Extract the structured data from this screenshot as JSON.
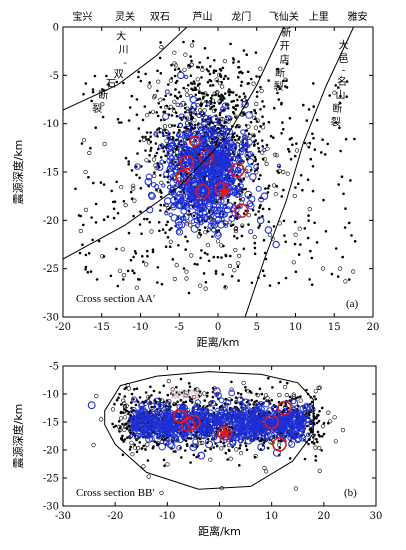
{
  "chart_data": [
    {
      "type": "scatter",
      "panel_label": "(a)",
      "section_label": "Cross section AA′",
      "xlabel": "距离/km",
      "ylabel": "震源深度/km",
      "xlim": [
        -20,
        20
      ],
      "ylim": [
        -30,
        0
      ],
      "xticks": [
        "-20",
        "-15",
        "-10",
        "-5",
        "0",
        "5",
        "10",
        "15",
        "20"
      ],
      "yticks": [
        "0",
        "-5",
        "-10",
        "-15",
        "-20",
        "-25",
        "-30"
      ],
      "top_places": [
        "宝兴",
        "灵关",
        "双石",
        "芦山",
        "龙门",
        "飞仙关",
        "上里",
        "雅安"
      ],
      "fault_labels": [
        {
          "text": [
            "大",
            "川",
            "-",
            "双",
            "石",
            "断",
            "裂"
          ]
        },
        {
          "text": [
            "新",
            "开",
            "店",
            "断",
            "裂"
          ]
        },
        {
          "text": [
            "大",
            "邑",
            "-",
            "名",
            "山",
            "断",
            "裂"
          ]
        }
      ],
      "series": [
        {
          "points": [
            [
              -3.0,
              -11.8
            ],
            [
              -1.5,
              -13.5
            ],
            [
              2.5,
              -14.8
            ],
            [
              -4.5,
              -15.5
            ],
            [
              -4.0,
              -14.0
            ],
            [
              0.5,
              -16.8
            ],
            [
              3.0,
              -19.0
            ],
            [
              -2.0,
              -17.0
            ]
          ]
        },
        {
          "points": [
            [
              -4.8,
              -5.0
            ],
            [
              -3.2,
              -7.5
            ],
            [
              -1.5,
              -9.5
            ],
            [
              0.8,
              -10.5
            ],
            [
              3.5,
              -8.0
            ],
            [
              -6.0,
              -12.0
            ],
            [
              -7.5,
              -14.5
            ],
            [
              -8.5,
              -17.5
            ],
            [
              -5.0,
              -20.5
            ],
            [
              -3.0,
              -19.5
            ],
            [
              4.5,
              -15.5
            ],
            [
              6.0,
              -17.5
            ],
            [
              6.5,
              -21.0
            ],
            [
              7.5,
              -22.5
            ],
            [
              5.5,
              -20.0
            ],
            [
              -9.0,
              -16.0
            ],
            [
              -6.5,
              -18.0
            ],
            [
              2.0,
              -12.5
            ],
            [
              -0.5,
              -20.5
            ],
            [
              1.5,
              -18.5
            ]
          ]
        }
      ]
    },
    {
      "type": "scatter",
      "panel_label": "(b)",
      "section_label": "Cross section BB′",
      "pink_label": "破裂区",
      "xlabel": "距离/km",
      "ylabel": "震源深度/km",
      "xlim": [
        -30,
        30
      ],
      "ylim": [
        -30,
        -5
      ],
      "xticks": [
        "-30",
        "-20",
        "-10",
        "0",
        "10",
        "20",
        "30"
      ],
      "yticks": [
        "-5",
        "-10",
        "-15",
        "-20",
        "-25",
        "-30"
      ],
      "series": [
        {
          "points": [
            [
              -7.5,
              -14.0
            ],
            [
              -6.0,
              -15.5
            ],
            [
              -5.0,
              -15.0
            ],
            [
              1.0,
              -17.0
            ],
            [
              10.0,
              -15.0
            ],
            [
              11.5,
              -19.0
            ],
            [
              12.5,
              -12.5
            ]
          ]
        },
        {
          "points": [
            [
              -24.5,
              -12.0
            ],
            [
              -16.0,
              -15.5
            ],
            [
              -12.0,
              -14.0
            ],
            [
              -10.0,
              -17.0
            ],
            [
              -5.0,
              -19.5
            ],
            [
              -2.0,
              -19.0
            ],
            [
              4.5,
              -16.5
            ],
            [
              8.0,
              -19.5
            ],
            [
              11.0,
              -20.5
            ],
            [
              14.0,
              -17.0
            ],
            [
              16.0,
              -15.0
            ],
            [
              -13.5,
              -18.0
            ],
            [
              5.0,
              -11.5
            ],
            [
              -3.5,
              -21.0
            ],
            [
              6.5,
              -17.5
            ],
            [
              -0.5,
              -9.5
            ]
          ]
        }
      ]
    }
  ]
}
